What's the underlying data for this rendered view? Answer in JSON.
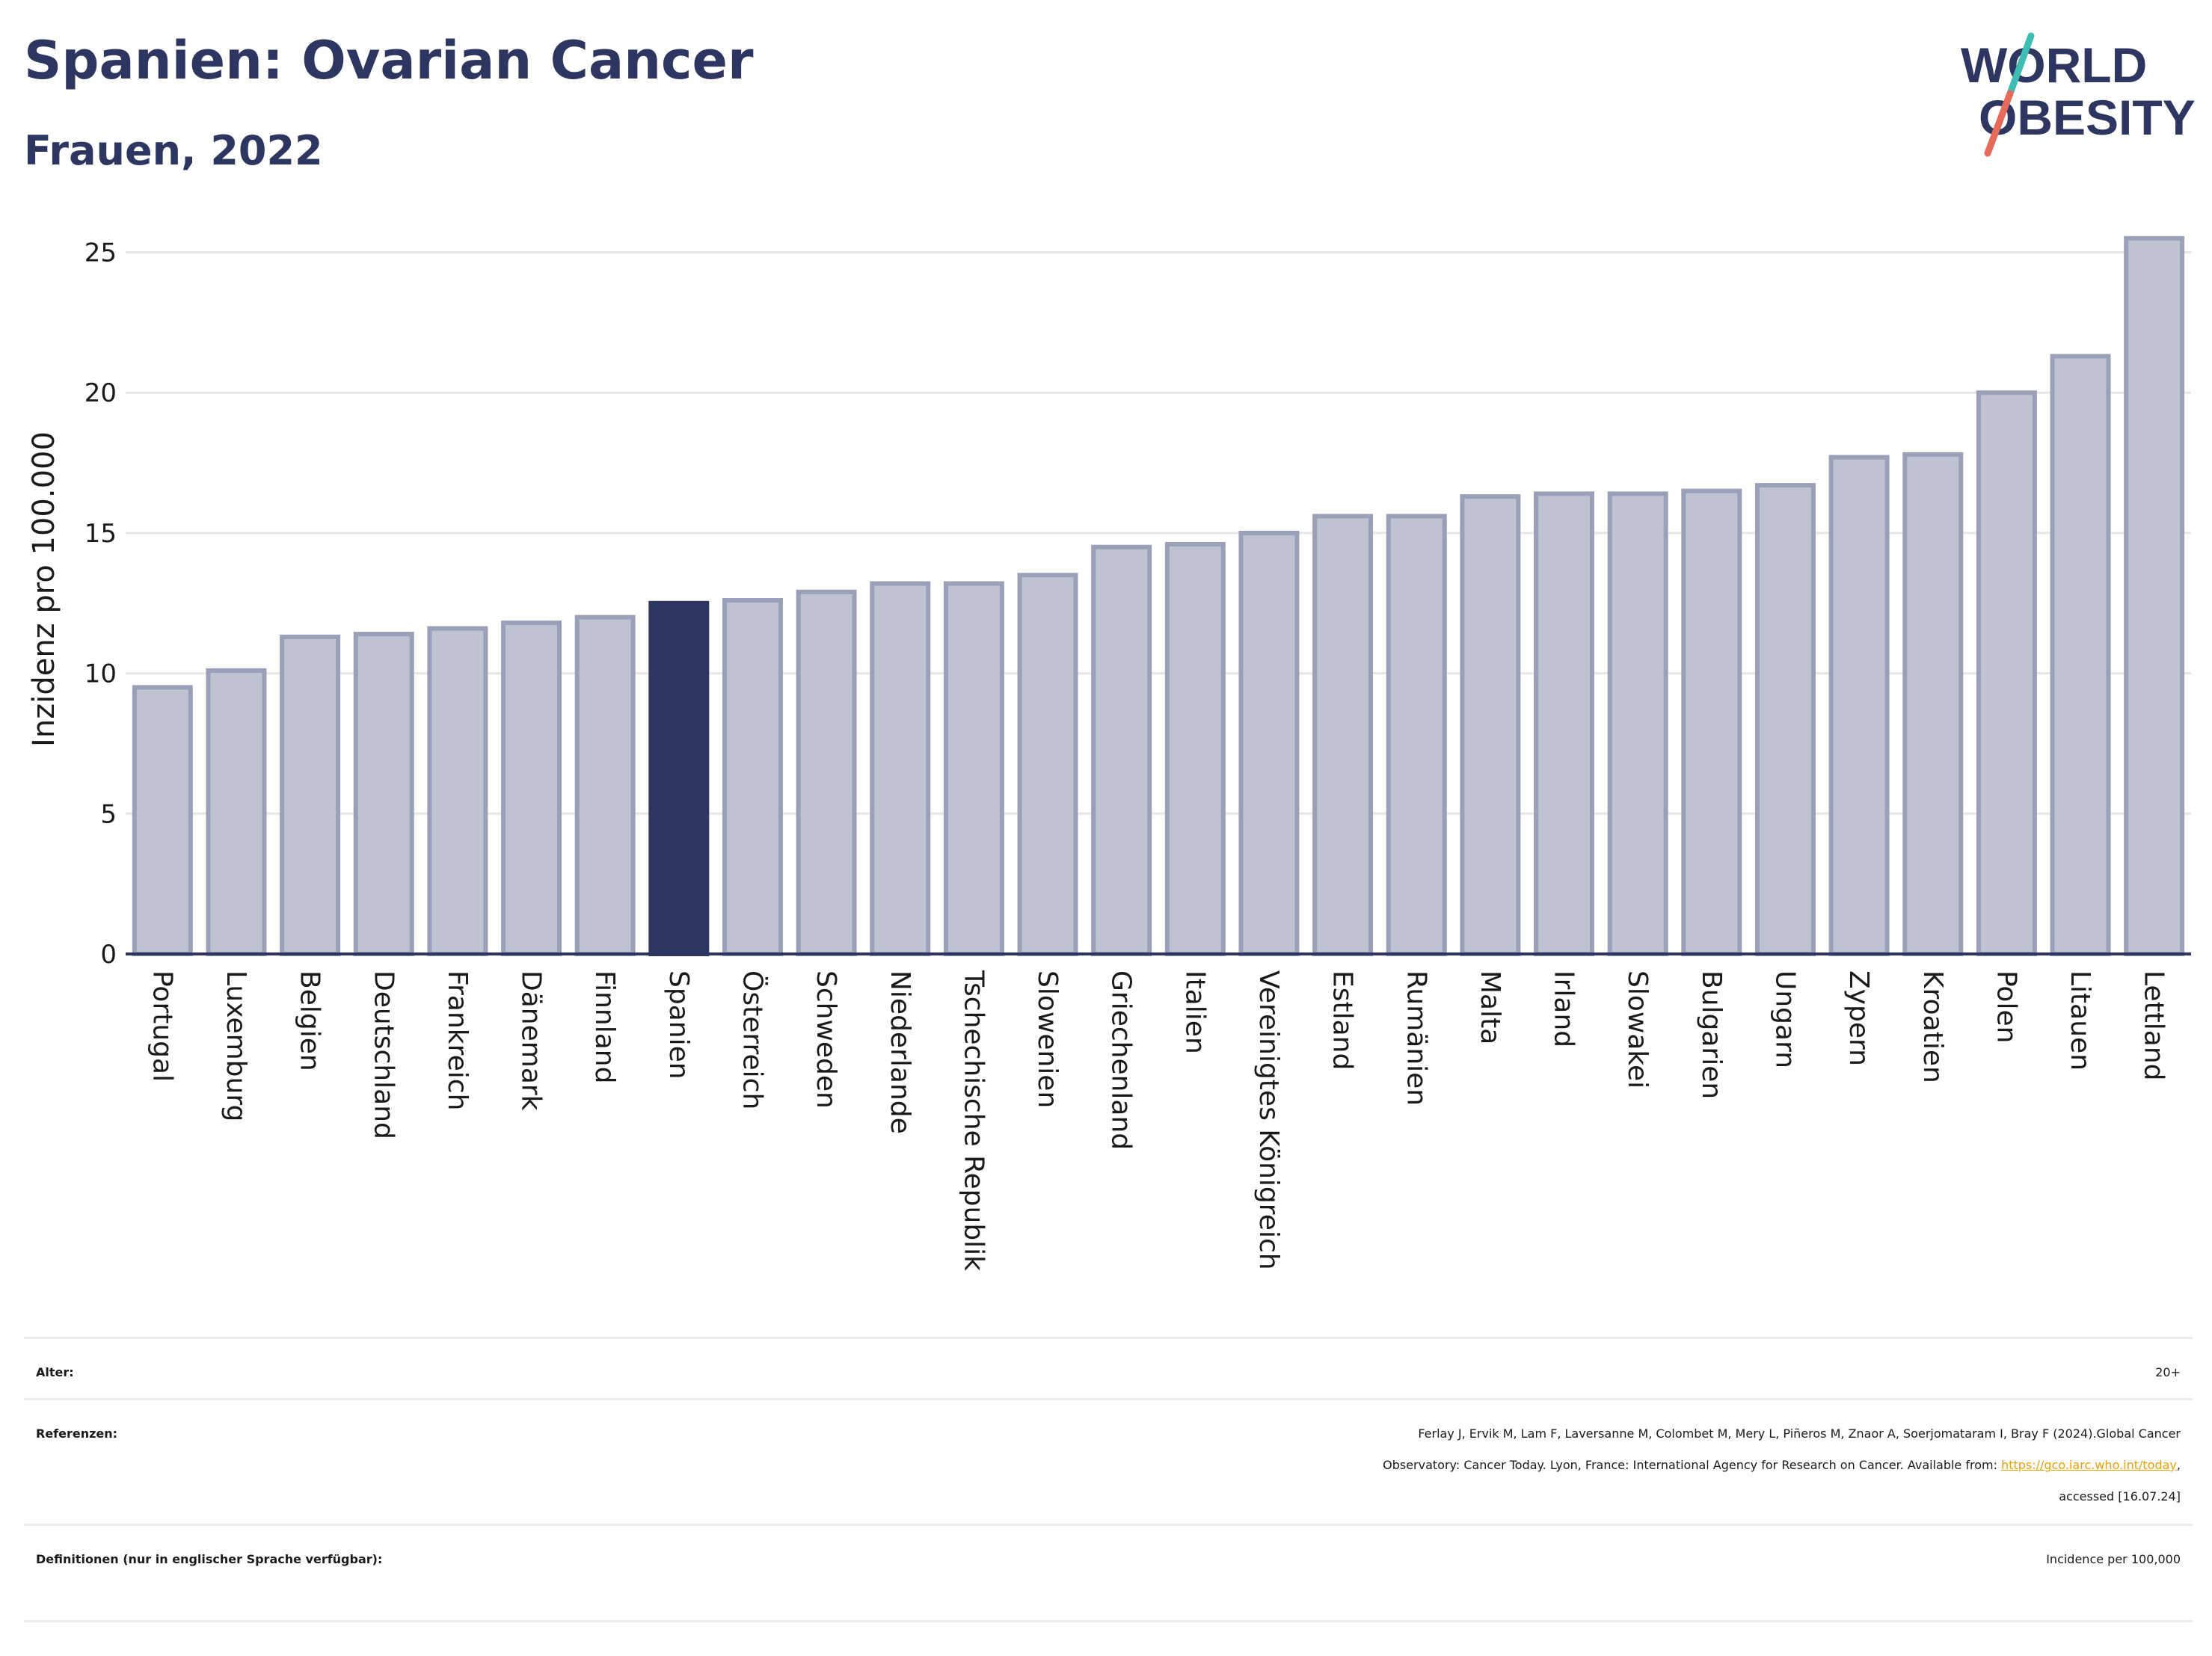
{
  "header": {
    "title": "Spanien: Ovarian Cancer",
    "subtitle": "Frauen, 2022",
    "logo_line1": "WORLD",
    "logo_line2": "OBESITY"
  },
  "colors": {
    "bar_default": "#bfc2d0",
    "bar_border": "#9aa0b8",
    "bar_highlight": "#2d3561",
    "title": "#2d3561",
    "logo_teal": "#3dbdb3",
    "logo_red": "#e56a5a"
  },
  "chart_data": {
    "type": "bar",
    "ylabel": "Inzidenz pro 100.000",
    "ylim": [
      0,
      26
    ],
    "yticks": [
      0,
      5,
      10,
      15,
      20,
      25
    ],
    "grid": true,
    "highlight": "Spanien",
    "categories": [
      "Portugal",
      "Luxemburg",
      "Belgien",
      "Deutschland",
      "Frankreich",
      "Dänemark",
      "Finnland",
      "Spanien",
      "Österreich",
      "Schweden",
      "Niederlande",
      "Tschechische Republik",
      "Slowenien",
      "Griechenland",
      "Italien",
      "Vereinigtes Königreich",
      "Estland",
      "Rumänien",
      "Malta",
      "Irland",
      "Slowakei",
      "Bulgarien",
      "Ungarn",
      "Zypern",
      "Kroatien",
      "Polen",
      "Litauen",
      "Lettland"
    ],
    "values": [
      9.5,
      10.1,
      11.3,
      11.4,
      11.6,
      11.8,
      12.0,
      12.5,
      12.6,
      12.9,
      13.2,
      13.2,
      13.5,
      14.5,
      14.6,
      15.0,
      15.6,
      15.6,
      16.3,
      16.4,
      16.4,
      16.5,
      16.7,
      17.7,
      17.8,
      20.0,
      21.3,
      25.5
    ]
  },
  "meta": {
    "age_label": "Alter:",
    "age_value": "20+",
    "refs_label": "Referenzen:",
    "refs_line1": "Ferlay J, Ervik M, Lam F, Laversanne M, Colombet M, Mery L, Piñeros M, Znaor A, Soerjomataram I, Bray F (2024).Global Cancer",
    "refs_line2_prefix": "Observatory: Cancer Today. Lyon, France: International Agency for Research on Cancer. Available from: ",
    "refs_link": "https://gco.iarc.who.int/today",
    "refs_line2_suffix": ",",
    "refs_line3": "accessed [16.07.24]",
    "defs_label": "Definitionen (nur in englischer Sprache verfügbar):",
    "defs_value": "Incidence per 100,000"
  }
}
